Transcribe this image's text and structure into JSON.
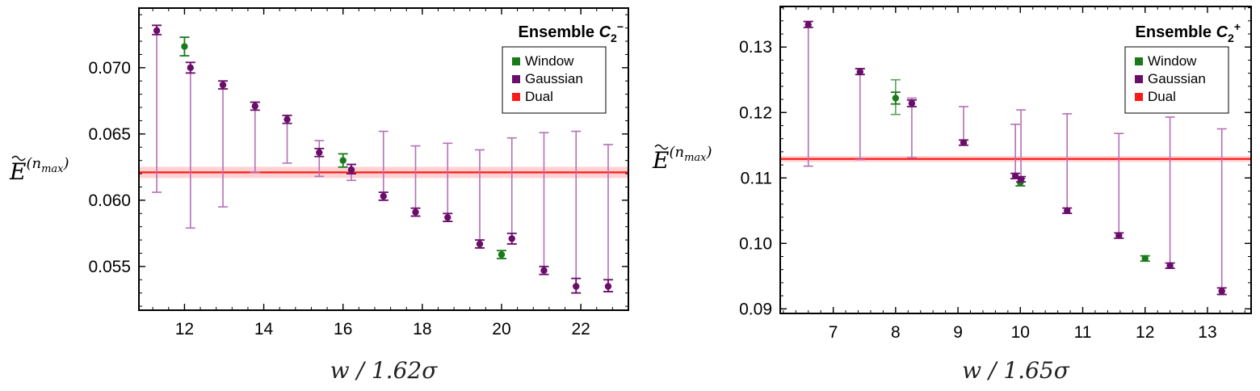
{
  "chart_data": [
    {
      "type": "scatter",
      "title": "Ensemble",
      "title_symbol": "C",
      "title_sub": "2",
      "title_sup": "−",
      "xlabel": "w  /  1.62σ",
      "ylabel": "E",
      "ylabel_sup": "(n",
      "ylabel_sup_sub": "max",
      "ylabel_sup_close": ")",
      "xlim": [
        10.85,
        23.2
      ],
      "ylim": [
        0.0517,
        0.0745
      ],
      "xticks": [
        12,
        14,
        16,
        18,
        20,
        22
      ],
      "xtick_labels": [
        "12",
        "14",
        "16",
        "18",
        "20",
        "22"
      ],
      "yticks": [
        0.055,
        0.06,
        0.065,
        0.07
      ],
      "ytick_labels": [
        "0.055",
        "0.060",
        "0.065",
        "0.070"
      ],
      "legend": [
        "Window",
        "Gaussian",
        "Dual"
      ],
      "legend_position": "top-right",
      "dual": {
        "value": 0.0621,
        "band": [
          0.0618,
          0.0624
        ]
      },
      "series": [
        {
          "name": "Window",
          "color": "#1a7a1a",
          "points": [
            {
              "x": 12.0,
              "y": 0.0716,
              "err": [
                0.0709,
                0.0723
              ]
            },
            {
              "x": 16.0,
              "y": 0.063,
              "err": [
                0.0625,
                0.0635
              ]
            },
            {
              "x": 20.0,
              "y": 0.0559,
              "err": [
                0.0556,
                0.0562
              ]
            }
          ]
        },
        {
          "name": "Gaussian",
          "color": "#6b0d6b",
          "points": [
            {
              "x": 11.3,
              "y": 0.0728,
              "err": [
                0.0725,
                0.0732
              ],
              "sys": [
                0.0606,
                0.0732
              ]
            },
            {
              "x": 12.15,
              "y": 0.07,
              "err": [
                0.0696,
                0.0704
              ],
              "sys": [
                0.0579,
                0.0704
              ]
            },
            {
              "x": 12.97,
              "y": 0.0687,
              "err": [
                0.0684,
                0.069
              ],
              "sys": [
                0.0595,
                0.069
              ]
            },
            {
              "x": 13.78,
              "y": 0.0671,
              "err": [
                0.0668,
                0.0674
              ],
              "sys": [
                0.0621,
                0.0674
              ]
            },
            {
              "x": 14.59,
              "y": 0.0661,
              "err": [
                0.0658,
                0.0664
              ],
              "sys": [
                0.0628,
                0.0664
              ]
            },
            {
              "x": 15.4,
              "y": 0.0636,
              "err": [
                0.0633,
                0.0639
              ],
              "sys": [
                0.0618,
                0.0645
              ]
            },
            {
              "x": 16.21,
              "y": 0.0623,
              "err": [
                0.062,
                0.0627
              ],
              "sys": [
                0.0615,
                0.0627
              ]
            },
            {
              "x": 17.02,
              "y": 0.0603,
              "err": [
                0.06,
                0.0606
              ],
              "sys": [
                0.06,
                0.0652
              ]
            },
            {
              "x": 17.83,
              "y": 0.0591,
              "err": [
                0.0588,
                0.0594
              ],
              "sys": [
                0.0588,
                0.0641
              ]
            },
            {
              "x": 18.64,
              "y": 0.0587,
              "err": [
                0.0584,
                0.059
              ],
              "sys": [
                0.0584,
                0.0643
              ]
            },
            {
              "x": 19.45,
              "y": 0.0567,
              "err": [
                0.0564,
                0.057
              ],
              "sys": [
                0.0564,
                0.0638
              ]
            },
            {
              "x": 20.26,
              "y": 0.0571,
              "err": [
                0.0567,
                0.0575
              ],
              "sys": [
                0.0567,
                0.0647
              ]
            },
            {
              "x": 21.07,
              "y": 0.0547,
              "err": [
                0.0544,
                0.055
              ],
              "sys": [
                0.0544,
                0.0651
              ]
            },
            {
              "x": 21.88,
              "y": 0.0535,
              "err": [
                0.053,
                0.0541
              ],
              "sys": [
                0.053,
                0.0652
              ]
            },
            {
              "x": 22.69,
              "y": 0.0535,
              "err": [
                0.0531,
                0.054
              ],
              "sys": [
                0.0531,
                0.0642
              ]
            }
          ]
        }
      ]
    },
    {
      "type": "scatter",
      "title": "Ensemble",
      "title_symbol": "C",
      "title_sub": "2",
      "title_sup": "+",
      "xlabel": "w  /  1.65σ",
      "ylabel": "E",
      "ylabel_sup": "(n",
      "ylabel_sup_sub": "max",
      "ylabel_sup_close": ")",
      "xlim": [
        6.15,
        13.7
      ],
      "ylim": [
        0.0893,
        0.1362
      ],
      "xticks": [
        7,
        8,
        9,
        10,
        11,
        12,
        13
      ],
      "xtick_labels": [
        "7",
        "8",
        "9",
        "10",
        "11",
        "12",
        "13"
      ],
      "yticks": [
        0.09,
        0.1,
        0.11,
        0.12,
        0.13
      ],
      "ytick_labels": [
        "0.09",
        "0.10",
        "0.11",
        "0.12",
        "0.13"
      ],
      "legend": [
        "Window",
        "Gaussian",
        "Dual"
      ],
      "legend_position": "top-right",
      "dual": {
        "value": 0.1129,
        "band": [
          0.1127,
          0.1131
        ]
      },
      "series": [
        {
          "name": "Window",
          "color": "#1a7a1a",
          "points": [
            {
              "x": 8.0,
              "y": 0.1222,
              "err": [
                0.1213,
                0.1231
              ],
              "sys": [
                0.1197,
                0.125
              ]
            },
            {
              "x": 10.0,
              "y": 0.1093,
              "err": [
                0.1088,
                0.1099
              ]
            },
            {
              "x": 12.0,
              "y": 0.0977,
              "err": [
                0.0973,
                0.0981
              ]
            }
          ]
        },
        {
          "name": "Gaussian",
          "color": "#6b0d6b",
          "points": [
            {
              "x": 6.6,
              "y": 0.1334,
              "err": [
                0.133,
                0.1339
              ],
              "sys": [
                0.1118,
                0.1339
              ]
            },
            {
              "x": 7.43,
              "y": 0.1262,
              "err": [
                0.1258,
                0.1267
              ],
              "sys": [
                0.1128,
                0.1267
              ]
            },
            {
              "x": 8.26,
              "y": 0.1214,
              "err": [
                0.1209,
                0.1219
              ],
              "sys": [
                0.1131,
                0.1222
              ]
            },
            {
              "x": 9.09,
              "y": 0.1154,
              "err": [
                0.115,
                0.1158
              ],
              "sys": [
                0.115,
                0.1209
              ]
            },
            {
              "x": 9.92,
              "y": 0.1103,
              "err": [
                0.1099,
                0.1107
              ],
              "sys": [
                0.1099,
                0.1182
              ]
            },
            {
              "x": 10.01,
              "y": 0.1098,
              "err": [
                0.1094,
                0.1102
              ],
              "sys": [
                0.1094,
                0.1204
              ]
            },
            {
              "x": 10.75,
              "y": 0.105,
              "err": [
                0.1046,
                0.1054
              ],
              "sys": [
                0.1046,
                0.1198
              ]
            },
            {
              "x": 11.58,
              "y": 0.1012,
              "err": [
                0.1008,
                0.1016
              ],
              "sys": [
                0.1008,
                0.1168
              ]
            },
            {
              "x": 12.4,
              "y": 0.0966,
              "err": [
                0.0962,
                0.097
              ],
              "sys": [
                0.0962,
                0.1193
              ]
            },
            {
              "x": 13.23,
              "y": 0.0927,
              "err": [
                0.0922,
                0.0932
              ],
              "sys": [
                0.0922,
                0.1175
              ]
            }
          ]
        }
      ]
    }
  ]
}
